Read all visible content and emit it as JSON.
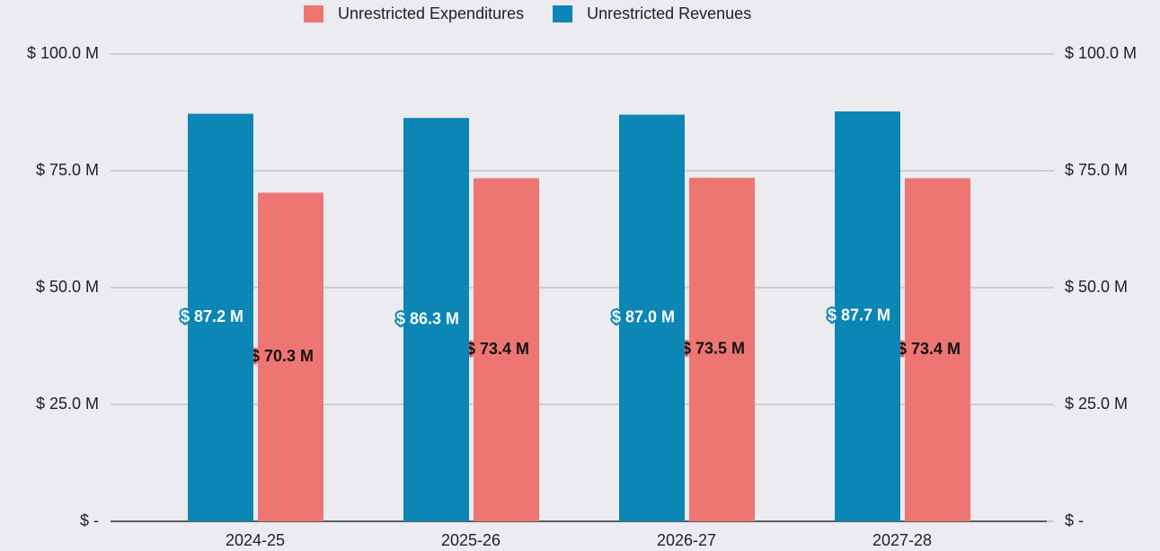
{
  "chart_data": {
    "type": "bar",
    "categories": [
      "2024-25",
      "2025-26",
      "2026-27",
      "2027-28"
    ],
    "series": [
      {
        "name": "Unrestricted Expenditures",
        "color": "#ee7672",
        "values": [
          70.3,
          73.4,
          73.5,
          73.4
        ],
        "value_labels": [
          "$ 70.3 M",
          "$ 73.4 M",
          "$ 73.5 M",
          "$ 73.4 M"
        ]
      },
      {
        "name": "Unrestricted Revenues",
        "color": "#0b86b5",
        "values": [
          87.2,
          86.3,
          87.0,
          87.7
        ],
        "value_labels": [
          "$ 87.2 M",
          "$ 86.3 M",
          "$ 87.0 M",
          "$ 87.7 M"
        ]
      }
    ],
    "ylim": [
      0,
      100
    ],
    "yticks": [
      {
        "value": 0,
        "label": "$ -"
      },
      {
        "value": 25,
        "label": "$ 25.0 M"
      },
      {
        "value": 50,
        "label": "$ 50.0 M"
      },
      {
        "value": 75,
        "label": "$ 75.0 M"
      },
      {
        "value": 100,
        "label": "$ 100.0 M"
      }
    ],
    "y2lim": [
      0,
      100
    ],
    "y2ticks": [
      {
        "value": 0,
        "label": "$ -"
      },
      {
        "value": 25,
        "label": "$ 25.0 M"
      },
      {
        "value": 50,
        "label": "$ 50.0 M"
      },
      {
        "value": 75,
        "label": "$ 75.0 M"
      },
      {
        "value": 100,
        "label": "$ 100.0 M"
      }
    ],
    "grid": true,
    "legend": "top"
  }
}
